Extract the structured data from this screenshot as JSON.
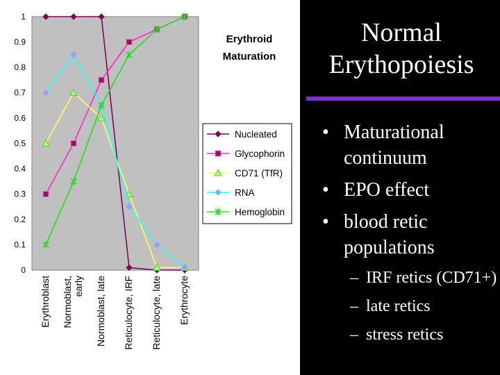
{
  "slide": {
    "title_lines": [
      "Normal",
      "Erythopoiesis"
    ],
    "bullets": [
      "Maturational continuum",
      "EPO effect",
      "blood retic populations"
    ],
    "sub_bullets": [
      "IRF retics (CD71+)",
      "late retics",
      "stress retics"
    ]
  },
  "chart_data": {
    "type": "line",
    "title": "Erythroid Maturation",
    "title_lines": [
      "Erythroid",
      "Maturation"
    ],
    "xlabel": "",
    "ylabel": "",
    "ylim": [
      0,
      1
    ],
    "yticks": [
      "0",
      "0.1",
      "0.2",
      "0.3",
      "0.4",
      "0.5",
      "0.6",
      "0.7",
      "0.8",
      "0.9",
      "1"
    ],
    "categories": [
      "Erythroblast",
      "Normoblast, early",
      "Normoblast, late",
      "Reticulocyte, IRF",
      "Reticulocyte, late",
      "Erythrocyte"
    ],
    "category_lines": [
      [
        "Erythroblast"
      ],
      [
        "Normoblast,",
        "early"
      ],
      [
        "Normoblast, late"
      ],
      [
        "Reticulocyte, IRF"
      ],
      [
        "Reticulocyte, late"
      ],
      [
        "Erythrocyte"
      ]
    ],
    "legend_position": "right",
    "grid": false,
    "plot_background": "#c0c0c0",
    "series": [
      {
        "name": "Nucleated",
        "color": "#7a0a54",
        "marker": "diamond",
        "values": [
          1,
          1,
          1,
          0.01,
          0,
          0
        ]
      },
      {
        "name": "Glycophorin",
        "color": "#ff22cc",
        "marker": "square",
        "marker_color": "#8b1a5a",
        "values": [
          0.3,
          0.5,
          0.75,
          0.9,
          0.95,
          1
        ]
      },
      {
        "name": "CD71 (TfR)",
        "color": "#ffff55",
        "marker": "triangle",
        "marker_color": "#a6ff80",
        "values": [
          0.5,
          0.7,
          0.6,
          0.3,
          0.01,
          0.01
        ]
      },
      {
        "name": "RNA",
        "color": "#22ffff",
        "marker": "diamond",
        "marker_color": "#9a9aff",
        "values": [
          0.7,
          0.85,
          0.65,
          0.25,
          0.1,
          0.01
        ]
      },
      {
        "name": "Hemoglobin",
        "color": "#22dd22",
        "marker": "star",
        "values": [
          0.1,
          0.35,
          0.65,
          0.85,
          0.95,
          1
        ]
      }
    ]
  }
}
